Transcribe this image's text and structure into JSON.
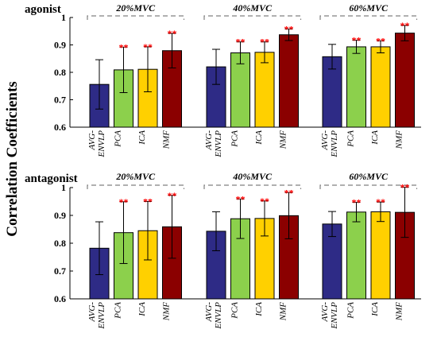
{
  "chart_data": {
    "type": "bar",
    "ylabel": "Correlation Coefficients",
    "ylim": [
      0.6,
      1
    ],
    "yticks": [
      "0.6",
      "0.7",
      "0.8",
      "0.9",
      "1"
    ],
    "categories": [
      "AVG-ENVLP",
      "PCA",
      "ICA",
      "NMF"
    ],
    "category_lines": [
      [
        "AVG-",
        "ENVLP"
      ],
      [
        "PCA"
      ],
      [
        "ICA"
      ],
      [
        "NMF"
      ]
    ],
    "colors": {
      "AVG-ENVLP": "#2e2b86",
      "PCA": "#8cd04c",
      "ICA": "#ffd000",
      "NMF": "#8b0000"
    },
    "significance_color": "#ff0000",
    "bracket_color": "#808080",
    "grid": false,
    "rows": [
      {
        "title": "agonist",
        "groups": [
          {
            "label": "20%MVC",
            "values": [
              0.756,
              0.809,
              0.811,
              0.879
            ],
            "errors": [
              0.09,
              0.083,
              0.082,
              0.063
            ],
            "significance": [
              "",
              "**",
              "**",
              "**"
            ]
          },
          {
            "label": "40%MVC",
            "values": [
              0.82,
              0.871,
              0.873,
              0.937
            ],
            "errors": [
              0.064,
              0.04,
              0.038,
              0.021
            ],
            "significance": [
              "",
              "**",
              "**",
              "**"
            ]
          },
          {
            "label": "60%MVC",
            "values": [
              0.857,
              0.893,
              0.893,
              0.943
            ],
            "errors": [
              0.045,
              0.024,
              0.022,
              0.028
            ],
            "significance": [
              "",
              "**",
              "**",
              "**"
            ]
          }
        ]
      },
      {
        "title": "antagonist",
        "groups": [
          {
            "label": "20%MVC",
            "values": [
              0.782,
              0.838,
              0.845,
              0.859
            ],
            "errors": [
              0.095,
              0.111,
              0.105,
              0.113
            ],
            "significance": [
              "",
              "**",
              "**",
              "**"
            ]
          },
          {
            "label": "40%MVC",
            "values": [
              0.843,
              0.888,
              0.889,
              0.899
            ],
            "errors": [
              0.07,
              0.071,
              0.063,
              0.083
            ],
            "significance": [
              "",
              "**",
              "**",
              "**"
            ]
          },
          {
            "label": "60%MVC",
            "values": [
              0.869,
              0.912,
              0.913,
              0.911
            ],
            "errors": [
              0.045,
              0.035,
              0.035,
              0.09
            ],
            "significance": [
              "",
              "**",
              "**",
              "**"
            ]
          }
        ]
      }
    ]
  }
}
